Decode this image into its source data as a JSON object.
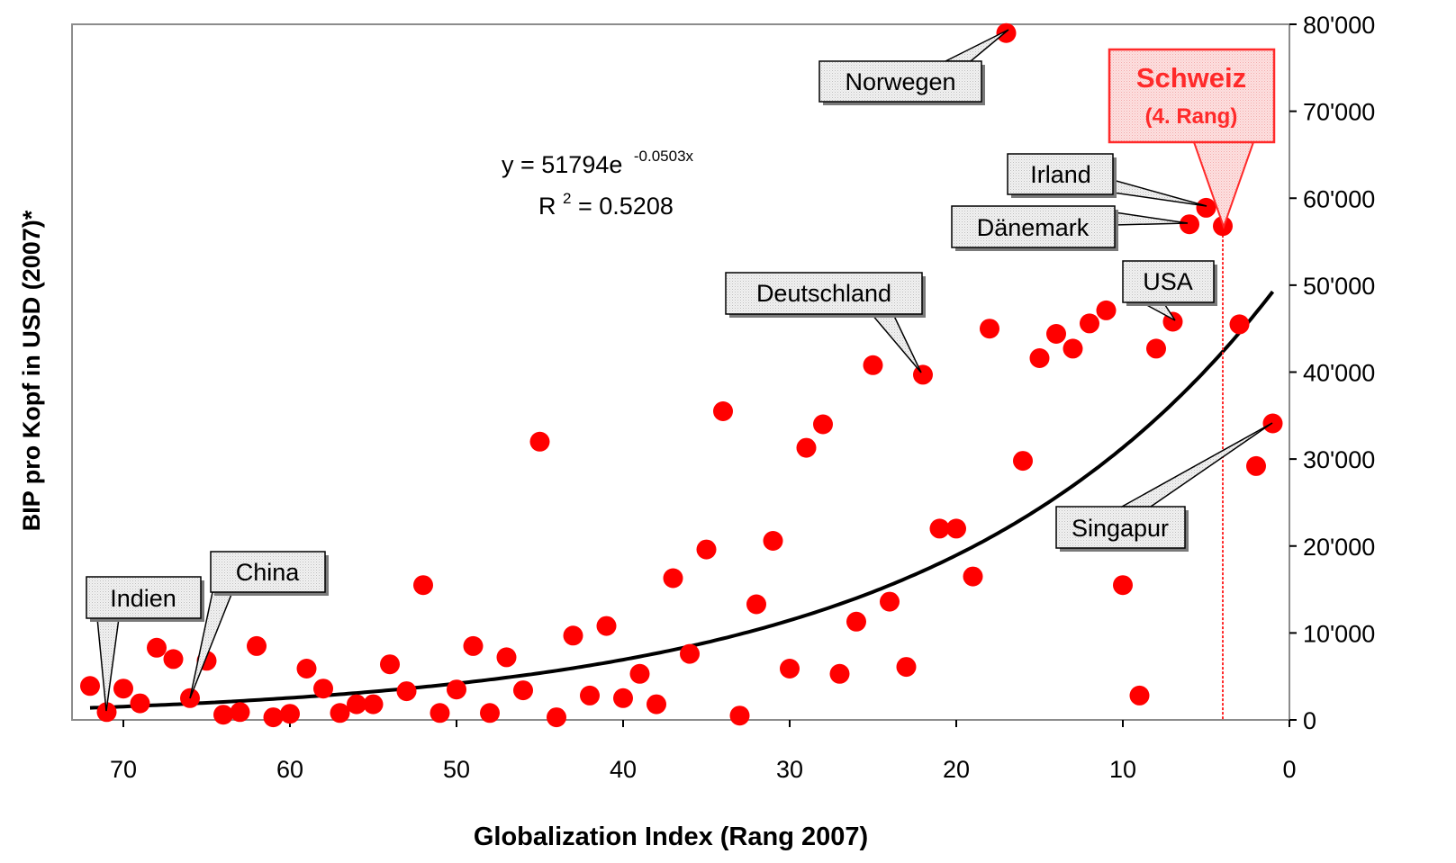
{
  "chart_data": {
    "type": "scatter",
    "xlabel": "Globalization Index (Rang 2007)",
    "ylabel": "BIP pro Kopf in USD (2007)*",
    "xlim": [
      0,
      73
    ],
    "ylim": [
      0,
      80000
    ],
    "x_reversed": true,
    "y_axis_side": "right",
    "x_ticks": [
      70,
      60,
      50,
      40,
      30,
      20,
      10,
      0
    ],
    "y_ticks": [
      0,
      10000,
      20000,
      30000,
      40000,
      50000,
      60000,
      70000,
      80000
    ],
    "x_tick_labels": [
      "70",
      "60",
      "50",
      "40",
      "30",
      "20",
      "10",
      "0"
    ],
    "y_tick_labels": [
      "0",
      "10'000",
      "20'000",
      "30'000",
      "40'000",
      "50'000",
      "60'000",
      "70'000",
      "80'000"
    ],
    "grid": false,
    "marker_color": "#ff0000",
    "trendline_color": "#000000",
    "highlight_color": "#ff2a2a",
    "trendline": {
      "type": "exponential",
      "a": 51794,
      "b": -0.0503,
      "x_range": [
        1,
        72
      ],
      "equation_text": "y = 51794e",
      "equation_exponent": "-0.0503x",
      "r2_prefix": "R",
      "r2_superscript": "2",
      "r2_suffix": " = 0.5208"
    },
    "points": [
      {
        "x": 72,
        "y": 3900
      },
      {
        "x": 71,
        "y": 900
      },
      {
        "x": 70,
        "y": 3600
      },
      {
        "x": 69,
        "y": 1900
      },
      {
        "x": 68,
        "y": 8300
      },
      {
        "x": 67,
        "y": 7000
      },
      {
        "x": 66,
        "y": 2500
      },
      {
        "x": 65,
        "y": 6800
      },
      {
        "x": 64,
        "y": 600
      },
      {
        "x": 63,
        "y": 900
      },
      {
        "x": 62,
        "y": 8500
      },
      {
        "x": 61,
        "y": 300
      },
      {
        "x": 60,
        "y": 700
      },
      {
        "x": 59,
        "y": 5900
      },
      {
        "x": 58,
        "y": 3600
      },
      {
        "x": 57,
        "y": 800
      },
      {
        "x": 56,
        "y": 1800
      },
      {
        "x": 55,
        "y": 1800
      },
      {
        "x": 54,
        "y": 6400
      },
      {
        "x": 53,
        "y": 3300
      },
      {
        "x": 52,
        "y": 15500
      },
      {
        "x": 51,
        "y": 800
      },
      {
        "x": 50,
        "y": 3500
      },
      {
        "x": 49,
        "y": 8500
      },
      {
        "x": 48,
        "y": 800
      },
      {
        "x": 47,
        "y": 7200
      },
      {
        "x": 46,
        "y": 3400
      },
      {
        "x": 45,
        "y": 32000
      },
      {
        "x": 44,
        "y": 300
      },
      {
        "x": 43,
        "y": 9700
      },
      {
        "x": 42,
        "y": 2800
      },
      {
        "x": 41,
        "y": 10800
      },
      {
        "x": 40,
        "y": 2500
      },
      {
        "x": 39,
        "y": 5300
      },
      {
        "x": 38,
        "y": 1800
      },
      {
        "x": 37,
        "y": 16300
      },
      {
        "x": 36,
        "y": 7600
      },
      {
        "x": 35,
        "y": 19600
      },
      {
        "x": 34,
        "y": 35500
      },
      {
        "x": 33,
        "y": 500
      },
      {
        "x": 32,
        "y": 13300
      },
      {
        "x": 31,
        "y": 20600
      },
      {
        "x": 30,
        "y": 5900
      },
      {
        "x": 29,
        "y": 31300
      },
      {
        "x": 28,
        "y": 34000
      },
      {
        "x": 27,
        "y": 5300
      },
      {
        "x": 26,
        "y": 11300
      },
      {
        "x": 25,
        "y": 40800
      },
      {
        "x": 24,
        "y": 13600
      },
      {
        "x": 23,
        "y": 6100
      },
      {
        "x": 22,
        "y": 39700
      },
      {
        "x": 21,
        "y": 22000
      },
      {
        "x": 20,
        "y": 22000
      },
      {
        "x": 19,
        "y": 16500
      },
      {
        "x": 18,
        "y": 45000
      },
      {
        "x": 17,
        "y": 79000
      },
      {
        "x": 16,
        "y": 29800
      },
      {
        "x": 15,
        "y": 41600
      },
      {
        "x": 14,
        "y": 44400
      },
      {
        "x": 13,
        "y": 42700
      },
      {
        "x": 12,
        "y": 45600
      },
      {
        "x": 11,
        "y": 47100
      },
      {
        "x": 10,
        "y": 15500
      },
      {
        "x": 9,
        "y": 2800
      },
      {
        "x": 8,
        "y": 42700
      },
      {
        "x": 7,
        "y": 45800
      },
      {
        "x": 6,
        "y": 57000
      },
      {
        "x": 5,
        "y": 58900
      },
      {
        "x": 4,
        "y": 56800
      },
      {
        "x": 3,
        "y": 45500
      },
      {
        "x": 2,
        "y": 29200
      },
      {
        "x": 1,
        "y": 34100
      }
    ],
    "annotations": [
      {
        "label": "Norwegen",
        "x": 17,
        "y": 79000
      },
      {
        "label": "Irland",
        "x": 5,
        "y": 58900
      },
      {
        "label": "Dänemark",
        "x": 6,
        "y": 57000
      },
      {
        "label": "Deutschland",
        "x": 22,
        "y": 39700
      },
      {
        "label": "USA",
        "x": 7,
        "y": 45800
      },
      {
        "label": "Singapur",
        "x": 1,
        "y": 34100
      },
      {
        "label": "China",
        "x": 66,
        "y": 2500
      },
      {
        "label": "Indien",
        "x": 71,
        "y": 900
      }
    ],
    "highlight": {
      "title": "Schweiz",
      "subtitle": "(4. Rang)",
      "x": 4,
      "y": 56800
    }
  }
}
